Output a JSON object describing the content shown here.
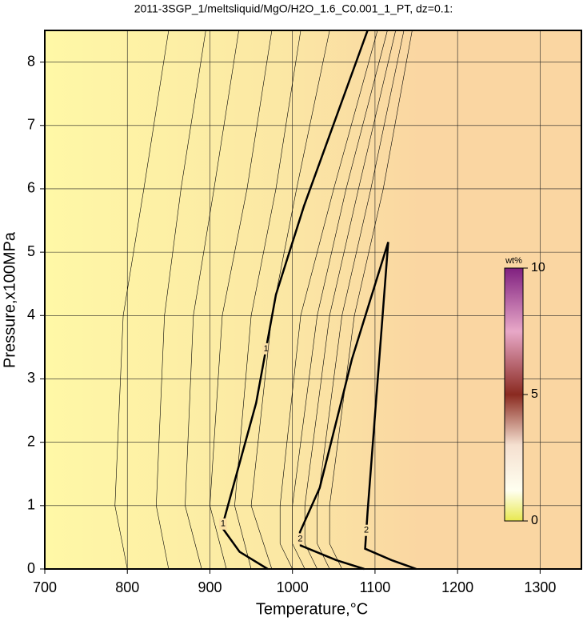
{
  "chart_data": {
    "type": "contour",
    "title": "2011-3SGP_1/meltsliquid/MgO/H2O_1.6_C0.001_1_PT, dz=0.1:",
    "x_label": "Temperature,°C",
    "y_label": "Pressure,x100MPa",
    "xlim": [
      700,
      1350
    ],
    "ylim": [
      0,
      8.5
    ],
    "xticks": [
      700,
      800,
      900,
      1000,
      1100,
      1200,
      1300
    ],
    "yticks": [
      0,
      1,
      2,
      3,
      4,
      5,
      6,
      7,
      8
    ],
    "grid": true,
    "contours": [
      {
        "label": "1",
        "x": [
          1091,
          1014,
          980,
          956,
          917,
          915,
          936,
          970
        ],
        "y": [
          8.5,
          5.73,
          4.33,
          2.62,
          0.77,
          0.65,
          0.27,
          0
        ]
      },
      {
        "label": "2",
        "x": [
          1087,
          1053,
          1010,
          1009,
          1033,
          1072,
          1116,
          1091,
          1088,
          1120,
          1150
        ],
        "y": [
          0,
          0.14,
          0.37,
          0.58,
          1.28,
          3.31,
          5.16,
          0.9,
          0.32,
          0.14,
          0
        ]
      },
      {
        "x": [
          850,
          820,
          795,
          785,
          800
        ],
        "y": [
          8.5,
          6,
          4,
          1,
          0
        ]
      },
      {
        "x": [
          895,
          865,
          845,
          835,
          850
        ],
        "y": [
          8.5,
          6,
          4,
          1,
          0
        ]
      },
      {
        "x": [
          935,
          905,
          880,
          870,
          890
        ],
        "y": [
          8.5,
          6,
          4,
          1,
          0
        ]
      },
      {
        "x": [
          975,
          945,
          915,
          900,
          920
        ],
        "y": [
          8.5,
          6,
          4,
          1,
          0
        ]
      },
      {
        "x": [
          1010,
          980,
          950,
          930,
          950
        ],
        "y": [
          8.5,
          6,
          4,
          1,
          0
        ]
      },
      {
        "x": [
          1045,
          1005,
          975,
          950,
          975
        ],
        "y": [
          8.5,
          6,
          4,
          1,
          0
        ]
      },
      {
        "x": [
          1103,
          1050,
          1010,
          985,
          985,
          1000
        ],
        "y": [
          8.5,
          6,
          4,
          1,
          0.4,
          0
        ]
      },
      {
        "x": [
          1115,
          1065,
          1030,
          1000,
          1000,
          1015
        ],
        "y": [
          8.5,
          6,
          4,
          1,
          0.4,
          0
        ]
      },
      {
        "x": [
          1125,
          1080,
          1045,
          1015,
          1015,
          1030
        ],
        "y": [
          8.5,
          6,
          4,
          1,
          0.4,
          0
        ]
      },
      {
        "x": [
          1135,
          1095,
          1060,
          1030,
          1030,
          1045
        ],
        "y": [
          8.5,
          6,
          4,
          1,
          0.4,
          0
        ]
      },
      {
        "x": [
          1145,
          1110,
          1075,
          1045,
          1045,
          1060
        ],
        "y": [
          8.5,
          6,
          4,
          1,
          0.4,
          0
        ]
      }
    ],
    "colorbar": {
      "label": "wt%",
      "lim": [
        0,
        10
      ],
      "ticks": [
        0,
        5,
        10
      ]
    }
  }
}
